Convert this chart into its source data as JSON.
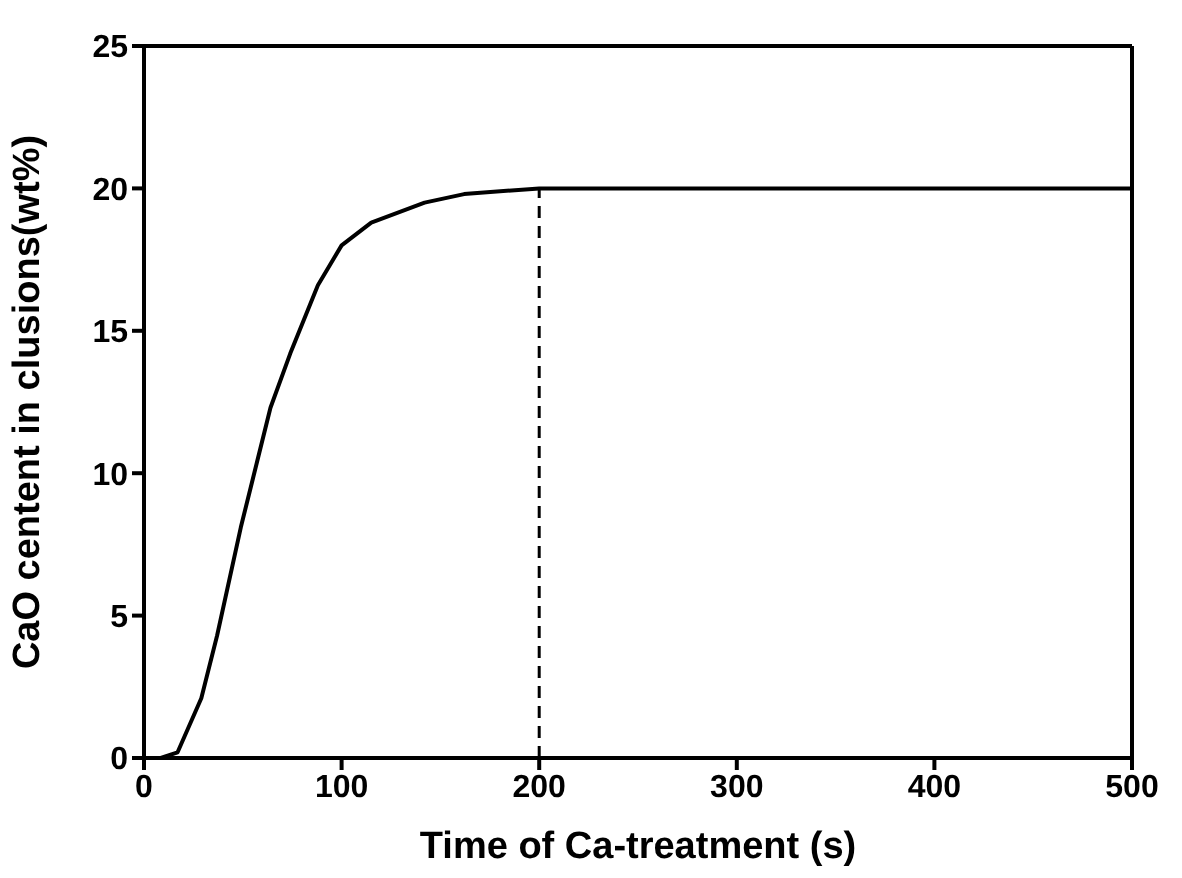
{
  "chart_data": {
    "type": "line",
    "xlabel": "Time of Ca-treatment (s)",
    "ylabel": "CaO centent in clusions(wt%)",
    "x": [
      0,
      8.5,
      17,
      29,
      37,
      49,
      64,
      74,
      88,
      100,
      115,
      142,
      162,
      200,
      500
    ],
    "series": [
      {
        "color": "#000000",
        "values": [
          0,
          0,
          0.2,
          2.1,
          4.3,
          8.1,
          12.3,
          14.2,
          16.6,
          18,
          18.8,
          19.5,
          19.8,
          20,
          20
        ]
      }
    ],
    "xlim": [
      0,
      500
    ],
    "xticks": [
      0,
      100,
      200,
      300,
      400,
      500
    ],
    "ylim": [
      0,
      25
    ],
    "yticks": [
      0,
      5,
      10,
      15,
      20,
      25
    ],
    "ref_lines": [
      {
        "axis": "x",
        "value": 200,
        "line_style": "dashed",
        "color": "#000000"
      }
    ],
    "grid": false,
    "legend": false,
    "marker": "none",
    "line_style": "solid"
  }
}
